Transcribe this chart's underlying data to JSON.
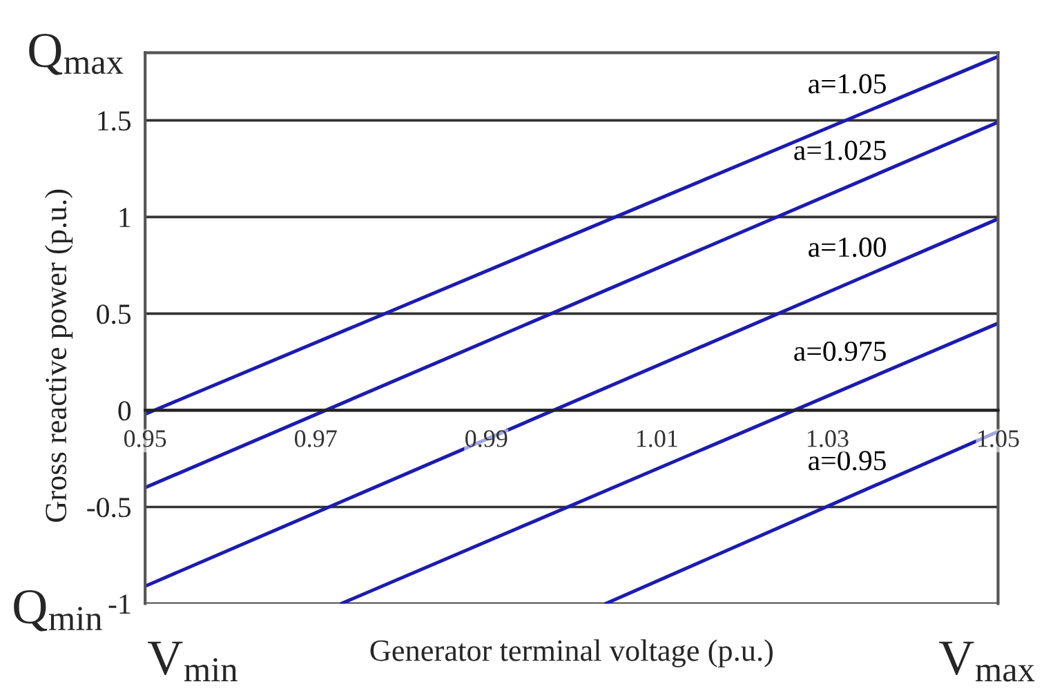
{
  "chart_data": {
    "type": "line",
    "xlabel": "Generator terminal voltage (p.u.)",
    "ylabel": "Gross reactive power (p.u.)",
    "xlim": [
      0.95,
      1.05
    ],
    "ylim": [
      -1,
      1.85
    ],
    "xticks": [
      0.95,
      0.97,
      0.99,
      1.01,
      1.03,
      1.05
    ],
    "yticks": [
      -1,
      -0.5,
      0,
      0.5,
      1,
      1.5
    ],
    "grid": "y",
    "legend": false,
    "series": [
      {
        "name": "a=1.05",
        "color": "#1c1cb0",
        "x": [
          0.95,
          1.05
        ],
        "values": [
          -0.02,
          1.83
        ]
      },
      {
        "name": "a=1.025",
        "color": "#1c1cb0",
        "x": [
          0.95,
          1.05
        ],
        "values": [
          -0.4,
          1.49
        ]
      },
      {
        "name": "a=1.00",
        "color": "#1c1cb0",
        "x": [
          0.95,
          1.05
        ],
        "values": [
          -0.91,
          0.99
        ]
      },
      {
        "name": "a=0.975",
        "color": "#1c1cb0",
        "x": [
          0.973,
          1.05
        ],
        "values": [
          -1,
          0.45
        ]
      },
      {
        "name": "a=0.95",
        "color": "#1c1cb0",
        "x": [
          1.004,
          1.05
        ],
        "values": [
          -1,
          -0.11
        ]
      }
    ],
    "annotations": [
      "Q$_{max}$",
      "Q$_{min}$",
      "V$_{min}$",
      "V$_{max}$"
    ]
  }
}
